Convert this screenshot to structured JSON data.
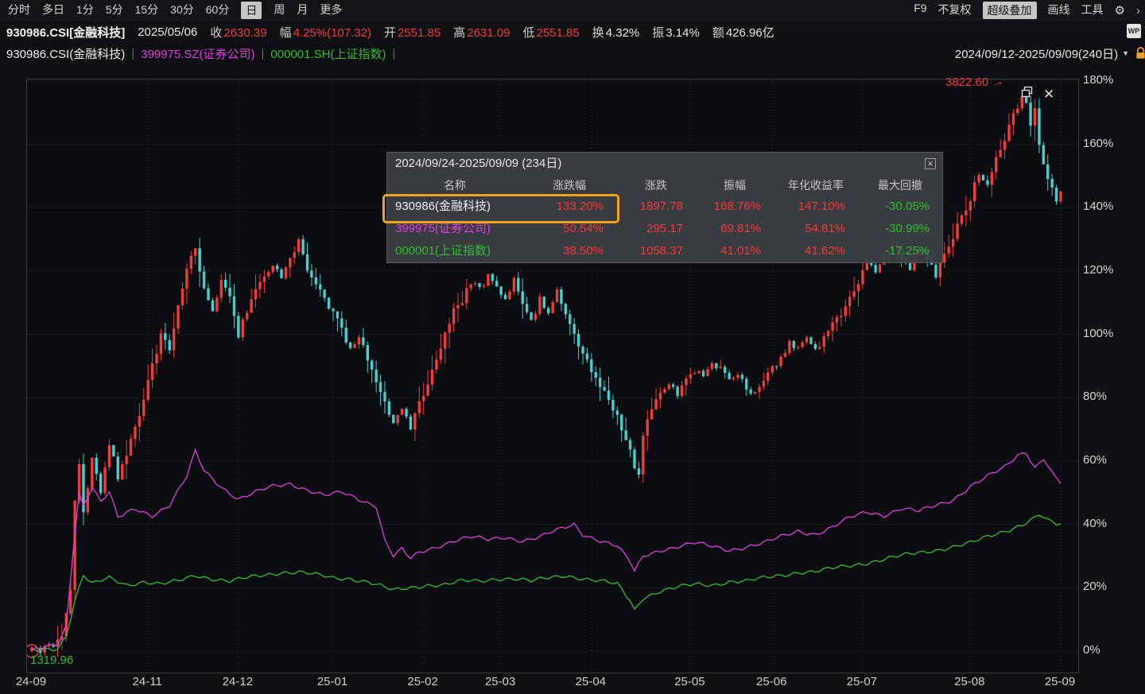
{
  "colors": {
    "red": "#f23b3b",
    "cyan": "#45d0d0",
    "magenta": "#e23ce2",
    "green": "#2fbf2f",
    "accent_orange": "#f0a41e",
    "grid": "#262c35"
  },
  "toolbar": {
    "left_items": [
      "分时",
      "多日",
      "1分",
      "5分",
      "15分",
      "30分",
      "60分",
      "日",
      "周",
      "月",
      "更多"
    ],
    "active_left": "日",
    "right_items": [
      "F9",
      "不复权",
      "超级叠加",
      "画线",
      "工具"
    ],
    "active_right": "超级叠加",
    "gear_icon": "⚙",
    "chevron": "›"
  },
  "info_bar": {
    "symbol": "930986.CSI[金融科技]",
    "date": "2025/05/06",
    "fields": [
      {
        "label": "收",
        "value": "2630.39",
        "color": "red"
      },
      {
        "label": "幅",
        "value": "4.25%(107.32)",
        "color": "red"
      },
      {
        "label": "开",
        "value": "2551.85",
        "color": "red"
      },
      {
        "label": "高",
        "value": "2631.09",
        "color": "red"
      },
      {
        "label": "低",
        "value": "2551.85",
        "color": "red"
      },
      {
        "label": "换",
        "value": "4.32%",
        "color": "white"
      },
      {
        "label": "振",
        "value": "3.14%",
        "color": "white"
      },
      {
        "label": "额",
        "value": "426.96亿",
        "color": "white"
      }
    ],
    "wp_badge": "WP"
  },
  "series_bar": {
    "items": [
      {
        "label": "930986.CSI(金融科技)",
        "color": "#f0f0f0"
      },
      {
        "label": "399975.SZ(证券公司)",
        "color": "#e23ce2"
      },
      {
        "label": "000001.SH(上证指数)",
        "color": "#2fbf2f"
      }
    ],
    "date_range": "2024/09/12-2025/09/09(240日)"
  },
  "popup": {
    "title": "2024/09/24-2025/09/09 (234日)",
    "close_glyph": "✕",
    "headers": [
      "名称",
      "涨跌幅",
      "涨跌",
      "振幅",
      "年化收益率",
      "最大回撤"
    ],
    "rows": [
      {
        "name": "930986(金融科技)",
        "color": "#f0f0f0",
        "values": [
          "133.20%",
          "1897.78",
          "168.76%",
          "147.10%",
          "-30.05%"
        ],
        "highlight": true
      },
      {
        "name": "399975(证券公司)",
        "color": "#e23ce2",
        "values": [
          "50.54%",
          "295.17",
          "69.81%",
          "54.81%",
          "-30.99%"
        ],
        "highlight": false
      },
      {
        "name": "000001(上证指数)",
        "color": "#2fbf2f",
        "values": [
          "38.50%",
          "1058.37",
          "41.01%",
          "41.62%",
          "-17.25%"
        ],
        "highlight": false
      }
    ]
  },
  "chart_data": {
    "type": "candlestick+line",
    "note": "overlay comparison chart, y axis = percent change since 2024/09/12 session start",
    "days": 240,
    "ylim": [
      -7,
      182
    ],
    "y_ticks": [
      "180%",
      "160%",
      "140%",
      "120%",
      "100%",
      "80%",
      "60%",
      "40%",
      "20%",
      "0%"
    ],
    "x_labels": [
      {
        "label": "24-09",
        "day": 0
      },
      {
        "label": "24-11",
        "day": 27
      },
      {
        "label": "24-12",
        "day": 48
      },
      {
        "label": "25-01",
        "day": 70
      },
      {
        "label": "25-02",
        "day": 91
      },
      {
        "label": "25-03",
        "day": 109
      },
      {
        "label": "25-04",
        "day": 130
      },
      {
        "label": "25-05",
        "day": 153
      },
      {
        "label": "25-06",
        "day": 172
      },
      {
        "label": "25-07",
        "day": 193
      },
      {
        "label": "25-08",
        "day": 218
      },
      {
        "label": "25-09",
        "day": 239
      }
    ],
    "annotations": {
      "high": "3822.60",
      "low": "1319.96"
    },
    "series": [
      {
        "name": "930986(金融科技)",
        "type": "candle",
        "up_color": "#f23b3b",
        "down_color": "#45d0d0",
        "close_pct_keyframes": [
          [
            0,
            0
          ],
          [
            4,
            1
          ],
          [
            7,
            4
          ],
          [
            9,
            20
          ],
          [
            10,
            48
          ],
          [
            11,
            58
          ],
          [
            12,
            45
          ],
          [
            14,
            60
          ],
          [
            16,
            50
          ],
          [
            18,
            66
          ],
          [
            20,
            55
          ],
          [
            22,
            62
          ],
          [
            25,
            75
          ],
          [
            28,
            90
          ],
          [
            30,
            100
          ],
          [
            32,
            95
          ],
          [
            34,
            110
          ],
          [
            36,
            120
          ],
          [
            38,
            128
          ],
          [
            40,
            114
          ],
          [
            42,
            107
          ],
          [
            44,
            117
          ],
          [
            46,
            111
          ],
          [
            48,
            100
          ],
          [
            50,
            108
          ],
          [
            52,
            114
          ],
          [
            54,
            119
          ],
          [
            56,
            122
          ],
          [
            58,
            117
          ],
          [
            60,
            124
          ],
          [
            62,
            129
          ],
          [
            64,
            121
          ],
          [
            66,
            117
          ],
          [
            68,
            111
          ],
          [
            70,
            107
          ],
          [
            72,
            101
          ],
          [
            74,
            96
          ],
          [
            76,
            100
          ],
          [
            78,
            92
          ],
          [
            80,
            85
          ],
          [
            82,
            78
          ],
          [
            84,
            72
          ],
          [
            86,
            76
          ],
          [
            88,
            70
          ],
          [
            90,
            78
          ],
          [
            92,
            85
          ],
          [
            94,
            92
          ],
          [
            96,
            100
          ],
          [
            98,
            107
          ],
          [
            100,
            111
          ],
          [
            102,
            117
          ],
          [
            104,
            114
          ],
          [
            106,
            119
          ],
          [
            108,
            115
          ],
          [
            110,
            111
          ],
          [
            112,
            117
          ],
          [
            114,
            109
          ],
          [
            116,
            104
          ],
          [
            118,
            111
          ],
          [
            120,
            107
          ],
          [
            122,
            114
          ],
          [
            124,
            107
          ],
          [
            126,
            99
          ],
          [
            128,
            94
          ],
          [
            130,
            89
          ],
          [
            132,
            84
          ],
          [
            134,
            79
          ],
          [
            136,
            74
          ],
          [
            138,
            67
          ],
          [
            140,
            58
          ],
          [
            141,
            55
          ],
          [
            142,
            68
          ],
          [
            144,
            77
          ],
          [
            146,
            81
          ],
          [
            148,
            84
          ],
          [
            150,
            81
          ],
          [
            152,
            85
          ],
          [
            154,
            89
          ],
          [
            156,
            87
          ],
          [
            158,
            91
          ],
          [
            160,
            89
          ],
          [
            162,
            85
          ],
          [
            164,
            87
          ],
          [
            166,
            83
          ],
          [
            168,
            81
          ],
          [
            170,
            85
          ],
          [
            172,
            89
          ],
          [
            174,
            93
          ],
          [
            176,
            97
          ],
          [
            178,
            95
          ],
          [
            180,
            99
          ],
          [
            182,
            95
          ],
          [
            184,
            99
          ],
          [
            186,
            103
          ],
          [
            188,
            107
          ],
          [
            190,
            111
          ],
          [
            192,
            117
          ],
          [
            194,
            123
          ],
          [
            196,
            119
          ],
          [
            198,
            125
          ],
          [
            200,
            129
          ],
          [
            202,
            125
          ],
          [
            204,
            121
          ],
          [
            206,
            127
          ],
          [
            208,
            123
          ],
          [
            210,
            119
          ],
          [
            212,
            125
          ],
          [
            214,
            131
          ],
          [
            216,
            137
          ],
          [
            218,
            143
          ],
          [
            220,
            151
          ],
          [
            222,
            147
          ],
          [
            224,
            155
          ],
          [
            226,
            161
          ],
          [
            228,
            169
          ],
          [
            230,
            176
          ],
          [
            231,
            172
          ],
          [
            232,
            167
          ],
          [
            233,
            171
          ],
          [
            234,
            160
          ],
          [
            235,
            154
          ],
          [
            236,
            149
          ],
          [
            237,
            146
          ],
          [
            238,
            142
          ],
          [
            239,
            146
          ]
        ]
      },
      {
        "name": "399975(证券公司)",
        "type": "line",
        "color": "#e23ce2",
        "pct_keyframes": [
          [
            0,
            0
          ],
          [
            6,
            2
          ],
          [
            8,
            8
          ],
          [
            10,
            38
          ],
          [
            11,
            50
          ],
          [
            12,
            46
          ],
          [
            14,
            52
          ],
          [
            16,
            47
          ],
          [
            18,
            50
          ],
          [
            20,
            42
          ],
          [
            24,
            45
          ],
          [
            28,
            43
          ],
          [
            32,
            46
          ],
          [
            36,
            55
          ],
          [
            38,
            63
          ],
          [
            40,
            57
          ],
          [
            44,
            52
          ],
          [
            48,
            48
          ],
          [
            52,
            50
          ],
          [
            56,
            52
          ],
          [
            60,
            53
          ],
          [
            64,
            51
          ],
          [
            68,
            49
          ],
          [
            72,
            50
          ],
          [
            76,
            48
          ],
          [
            80,
            46
          ],
          [
            82,
            35
          ],
          [
            84,
            30
          ],
          [
            86,
            32
          ],
          [
            88,
            29
          ],
          [
            90,
            31
          ],
          [
            94,
            33
          ],
          [
            98,
            35
          ],
          [
            102,
            36
          ],
          [
            106,
            35
          ],
          [
            110,
            36
          ],
          [
            114,
            35
          ],
          [
            118,
            36
          ],
          [
            122,
            38
          ],
          [
            126,
            40
          ],
          [
            128,
            37
          ],
          [
            132,
            35
          ],
          [
            136,
            33
          ],
          [
            139,
            28
          ],
          [
            140,
            25
          ],
          [
            142,
            30
          ],
          [
            146,
            32
          ],
          [
            150,
            33
          ],
          [
            154,
            34
          ],
          [
            158,
            33
          ],
          [
            162,
            32
          ],
          [
            166,
            33
          ],
          [
            170,
            34
          ],
          [
            174,
            36
          ],
          [
            178,
            38
          ],
          [
            182,
            37
          ],
          [
            186,
            39
          ],
          [
            190,
            42
          ],
          [
            194,
            44
          ],
          [
            198,
            43
          ],
          [
            202,
            45
          ],
          [
            206,
            44
          ],
          [
            210,
            46
          ],
          [
            214,
            48
          ],
          [
            218,
            52
          ],
          [
            222,
            55
          ],
          [
            226,
            58
          ],
          [
            229,
            62
          ],
          [
            231,
            63
          ],
          [
            233,
            58
          ],
          [
            235,
            61
          ],
          [
            237,
            56
          ],
          [
            239,
            53
          ]
        ]
      },
      {
        "name": "000001(上证指数)",
        "type": "line",
        "color": "#2fbf2f",
        "pct_keyframes": [
          [
            0,
            0
          ],
          [
            6,
            1
          ],
          [
            8,
            5
          ],
          [
            10,
            16
          ],
          [
            12,
            24
          ],
          [
            14,
            21
          ],
          [
            18,
            23
          ],
          [
            22,
            21
          ],
          [
            26,
            22
          ],
          [
            30,
            21
          ],
          [
            34,
            22
          ],
          [
            38,
            24
          ],
          [
            42,
            23
          ],
          [
            46,
            22
          ],
          [
            50,
            23
          ],
          [
            54,
            24
          ],
          [
            58,
            25
          ],
          [
            62,
            25
          ],
          [
            66,
            24
          ],
          [
            70,
            23
          ],
          [
            74,
            23
          ],
          [
            78,
            22
          ],
          [
            82,
            20
          ],
          [
            84,
            19
          ],
          [
            88,
            20
          ],
          [
            92,
            21
          ],
          [
            96,
            21
          ],
          [
            100,
            22
          ],
          [
            104,
            22
          ],
          [
            108,
            23
          ],
          [
            112,
            23
          ],
          [
            116,
            22
          ],
          [
            120,
            23
          ],
          [
            124,
            24
          ],
          [
            128,
            23
          ],
          [
            132,
            22
          ],
          [
            136,
            21
          ],
          [
            139,
            16
          ],
          [
            140,
            13
          ],
          [
            142,
            17
          ],
          [
            146,
            19
          ],
          [
            150,
            20
          ],
          [
            154,
            21
          ],
          [
            158,
            21
          ],
          [
            162,
            22
          ],
          [
            166,
            22
          ],
          [
            170,
            23
          ],
          [
            174,
            24
          ],
          [
            178,
            25
          ],
          [
            182,
            25
          ],
          [
            186,
            26
          ],
          [
            190,
            27
          ],
          [
            194,
            28
          ],
          [
            198,
            29
          ],
          [
            202,
            30
          ],
          [
            206,
            31
          ],
          [
            210,
            32
          ],
          [
            214,
            33
          ],
          [
            218,
            34
          ],
          [
            222,
            36
          ],
          [
            226,
            38
          ],
          [
            230,
            40
          ],
          [
            233,
            42
          ],
          [
            234,
            43
          ],
          [
            236,
            41
          ],
          [
            238,
            40
          ],
          [
            239,
            40
          ]
        ]
      }
    ]
  }
}
